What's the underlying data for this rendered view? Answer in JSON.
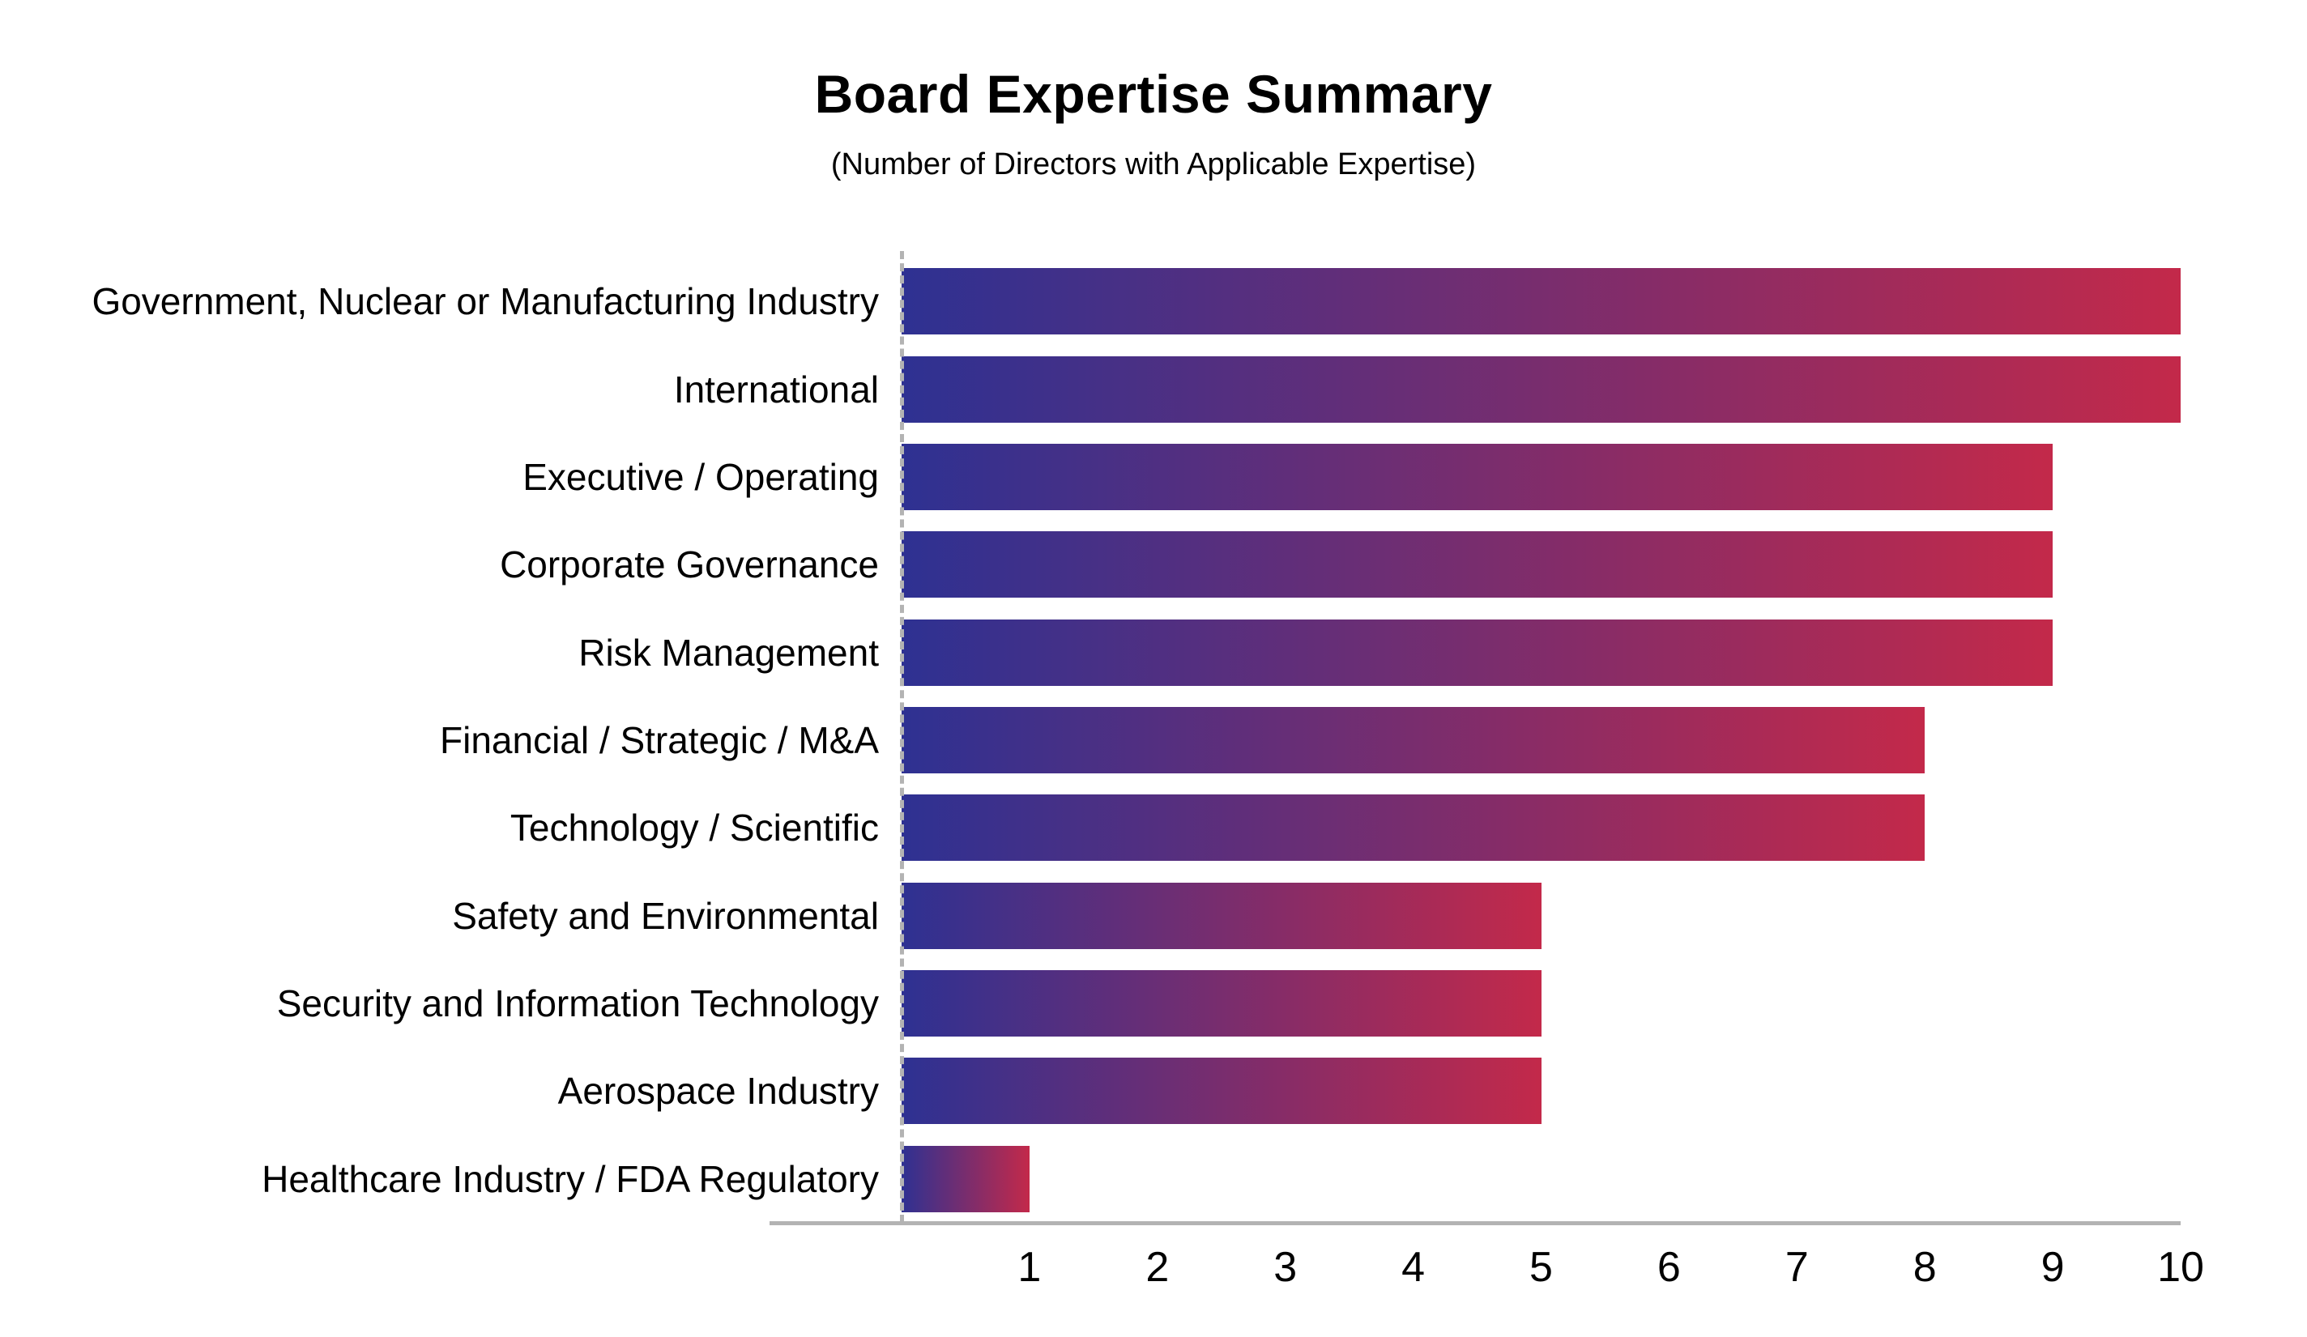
{
  "chart_data": {
    "type": "bar",
    "orientation": "horizontal",
    "title": "Board Expertise Summary",
    "subtitle": "(Number of Directors with Applicable Expertise)",
    "categories": [
      "Government, Nuclear or Manufacturing Industry",
      "International",
      "Executive / Operating",
      "Corporate Governance",
      "Risk Management",
      "Financial / Strategic / M&A",
      "Technology / Scientific",
      "Safety and Environmental",
      "Security and Information Technology",
      "Aerospace Industry",
      "Healthcare Industry / FDA Regulatory"
    ],
    "values": [
      10,
      10,
      9,
      9,
      9,
      8,
      8,
      5,
      5,
      5,
      1
    ],
    "xlabel": "",
    "ylabel": "",
    "xlim": [
      0,
      10
    ],
    "x_ticks": [
      1,
      2,
      3,
      4,
      5,
      6,
      7,
      8,
      9,
      10
    ],
    "grid": false,
    "legend": false,
    "bar_gradient_start": "#2e3192",
    "bar_gradient_end": "#c3294a",
    "axis_color": "#b3b3b3"
  }
}
